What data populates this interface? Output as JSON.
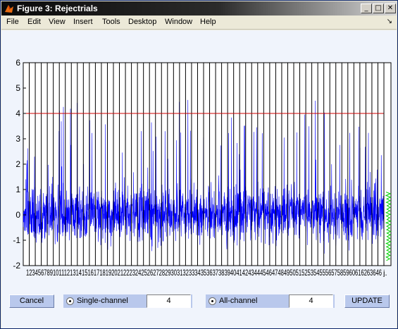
{
  "window": {
    "title": "Figure 3: Rejectrials",
    "minimize_glyph": "_",
    "maximize_glyph": "□",
    "close_glyph": "✕",
    "dock_glyph": "↘"
  },
  "menu": {
    "items": [
      "File",
      "Edit",
      "View",
      "Insert",
      "Tools",
      "Desktop",
      "Window",
      "Help"
    ]
  },
  "chart_data": {
    "type": "line",
    "ylim": [
      -2,
      6
    ],
    "yticks": [
      "6",
      "5",
      "4",
      "3",
      "2",
      "1",
      "0",
      "-1",
      "-2"
    ],
    "threshold": 4,
    "threshold_color": "#cc0000",
    "signal_color": "#0000ff",
    "trial_count": 60,
    "xlabels_visible": "123456789101112131415161718192021222324252627282930313233343536373839404142434445464748495051525354555657585960616263646",
    "side_panel_color": "#00d000",
    "side_label": "j."
  },
  "controls": {
    "cancel_label": "Cancel",
    "single_channel_label": "Single-channel",
    "single_channel_value": "4",
    "all_channel_label": "All-channel",
    "all_channel_value": "4",
    "update_label": "UPDATE"
  }
}
